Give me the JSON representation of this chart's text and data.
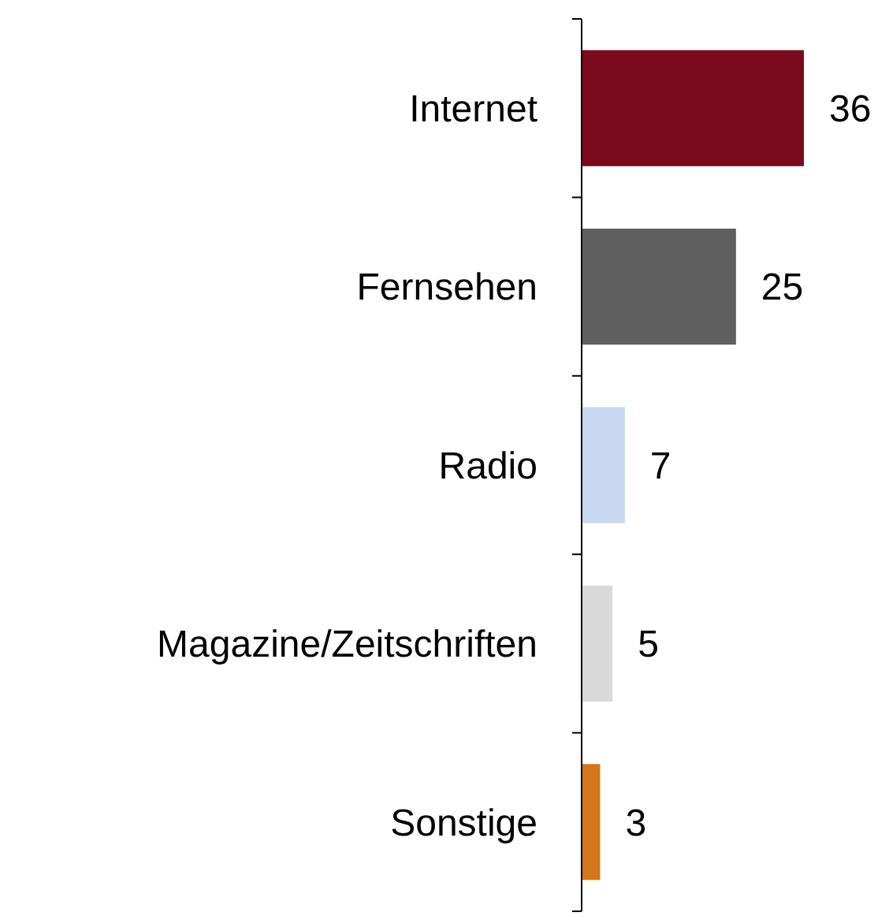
{
  "chart_data": {
    "type": "bar",
    "orientation": "horizontal",
    "categories": [
      "Internet",
      "Fernsehen",
      "Radio",
      "Magazine/Zeitschriften",
      "Sonstige"
    ],
    "values": [
      36,
      25,
      7,
      5,
      3
    ],
    "colors": [
      "#7b0a1d",
      "#5f5f5f",
      "#c8d8f0",
      "#d9d9d9",
      "#d4761c"
    ],
    "data_labels": true,
    "tick_labels": "y"
  }
}
